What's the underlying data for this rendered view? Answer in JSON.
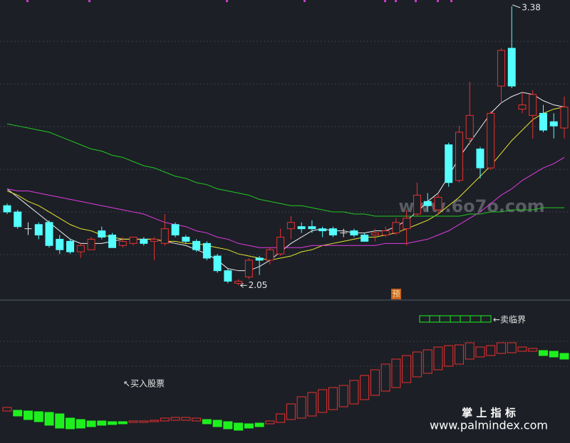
{
  "chart_data": {
    "type": "candlestick",
    "ylim": [
      1.98,
      3.41
    ],
    "up_color": "#e8312f",
    "down_color": "#54ffff",
    "flat_color": "#e6e6e6",
    "open": [
      2.43,
      2.4,
      2.32,
      2.34,
      2.35,
      2.27,
      2.26,
      2.21,
      2.22,
      2.31,
      2.29,
      2.24,
      2.25,
      2.27,
      2.26,
      2.25,
      2.34,
      2.28,
      2.26,
      2.25,
      2.19,
      2.12,
      2.06,
      2.09,
      2.18,
      2.17,
      2.2,
      2.32,
      2.33,
      2.33,
      2.32,
      2.32,
      2.3,
      2.31,
      2.29,
      2.29,
      2.29,
      2.3,
      2.32,
      2.39,
      2.45,
      2.41,
      2.72,
      2.55,
      2.75,
      2.7,
      2.61,
      3.0,
      3.18,
      2.89,
      2.86,
      2.87,
      2.83,
      2.8
    ],
    "high": [
      2.44,
      2.41,
      2.35,
      2.35,
      2.36,
      2.29,
      2.27,
      2.25,
      2.28,
      2.33,
      2.3,
      2.28,
      2.28,
      2.28,
      2.28,
      2.39,
      2.35,
      2.29,
      2.27,
      2.26,
      2.2,
      2.13,
      2.08,
      2.18,
      2.19,
      2.23,
      2.32,
      2.38,
      2.35,
      2.36,
      2.33,
      2.33,
      2.32,
      2.32,
      2.3,
      2.32,
      2.33,
      2.37,
      2.41,
      2.54,
      2.49,
      2.49,
      2.73,
      2.81,
      3.02,
      2.71,
      2.88,
      3.18,
      3.38,
      2.97,
      2.98,
      2.91,
      2.87,
      2.95
    ],
    "low": [
      2.39,
      2.32,
      2.29,
      2.27,
      2.23,
      2.2,
      2.2,
      2.18,
      2.22,
      2.27,
      2.23,
      2.23,
      2.24,
      2.24,
      2.17,
      2.24,
      2.28,
      2.25,
      2.21,
      2.17,
      2.11,
      2.06,
      2.05,
      2.08,
      2.1,
      2.15,
      2.19,
      2.27,
      2.3,
      2.3,
      2.28,
      2.28,
      2.28,
      2.28,
      2.26,
      2.26,
      2.28,
      2.29,
      2.24,
      2.38,
      2.4,
      2.39,
      2.52,
      2.54,
      2.72,
      2.56,
      2.6,
      2.92,
      2.99,
      2.87,
      2.75,
      2.78,
      2.75,
      2.75
    ],
    "close": [
      2.4,
      2.33,
      2.32,
      2.29,
      2.24,
      2.22,
      2.21,
      2.24,
      2.27,
      2.28,
      2.23,
      2.26,
      2.28,
      2.25,
      2.27,
      2.32,
      2.29,
      2.26,
      2.22,
      2.18,
      2.12,
      2.07,
      2.07,
      2.17,
      2.17,
      2.22,
      2.28,
      2.35,
      2.32,
      2.32,
      2.31,
      2.29,
      2.3,
      2.29,
      2.26,
      2.3,
      2.31,
      2.35,
      2.37,
      2.48,
      2.43,
      2.47,
      2.54,
      2.78,
      2.86,
      2.61,
      2.87,
      3.17,
      3.0,
      2.91,
      2.96,
      2.79,
      2.81,
      2.9
    ],
    "moving_averages": [
      {
        "color": "#f0f0f0",
        "values": [
          2.51,
          2.47,
          2.43,
          2.39,
          2.35,
          2.31,
          2.27,
          2.25,
          2.25,
          2.25,
          2.26,
          2.27,
          2.27,
          2.27,
          2.27,
          2.26,
          2.25,
          2.24,
          2.22,
          2.2,
          2.17,
          2.13,
          2.12,
          2.12,
          2.14,
          2.17,
          2.21,
          2.25,
          2.28,
          2.31,
          2.32,
          2.31,
          2.31,
          2.3,
          2.3,
          2.31,
          2.31,
          2.33,
          2.36,
          2.4,
          2.45,
          2.49,
          2.57,
          2.66,
          2.73,
          2.8,
          2.87,
          2.92,
          2.95,
          2.97,
          2.96,
          2.93,
          2.91,
          2.9
        ]
      },
      {
        "color": "#e6e62e",
        "values": [
          2.5,
          2.48,
          2.45,
          2.43,
          2.4,
          2.37,
          2.34,
          2.32,
          2.31,
          2.29,
          2.28,
          2.27,
          2.27,
          2.27,
          2.27,
          2.26,
          2.26,
          2.25,
          2.25,
          2.24,
          2.23,
          2.22,
          2.2,
          2.19,
          2.18,
          2.17,
          2.18,
          2.19,
          2.21,
          2.22,
          2.24,
          2.25,
          2.26,
          2.27,
          2.28,
          2.28,
          2.29,
          2.3,
          2.32,
          2.34,
          2.36,
          2.39,
          2.43,
          2.47,
          2.52,
          2.57,
          2.62,
          2.68,
          2.74,
          2.79,
          2.84,
          2.87,
          2.89,
          2.9
        ]
      },
      {
        "color": "#e23be2",
        "values": [
          2.51,
          2.5,
          2.5,
          2.49,
          2.48,
          2.47,
          2.46,
          2.45,
          2.44,
          2.43,
          2.42,
          2.41,
          2.4,
          2.39,
          2.37,
          2.35,
          2.34,
          2.33,
          2.31,
          2.3,
          2.28,
          2.27,
          2.25,
          2.24,
          2.23,
          2.23,
          2.23,
          2.23,
          2.23,
          2.24,
          2.24,
          2.24,
          2.24,
          2.24,
          2.24,
          2.24,
          2.25,
          2.25,
          2.25,
          2.26,
          2.27,
          2.29,
          2.31,
          2.34,
          2.37,
          2.4,
          2.44,
          2.48,
          2.51,
          2.55,
          2.58,
          2.61,
          2.63,
          2.66
        ]
      },
      {
        "color": "#22c922",
        "values": [
          2.82,
          2.81,
          2.8,
          2.79,
          2.78,
          2.76,
          2.74,
          2.72,
          2.7,
          2.69,
          2.67,
          2.66,
          2.64,
          2.62,
          2.61,
          2.59,
          2.57,
          2.56,
          2.54,
          2.53,
          2.51,
          2.5,
          2.49,
          2.48,
          2.46,
          2.45,
          2.44,
          2.43,
          2.43,
          2.42,
          2.41,
          2.4,
          2.4,
          2.39,
          2.39,
          2.38,
          2.38,
          2.38,
          2.38,
          2.38,
          2.38,
          2.38,
          2.38,
          2.38,
          2.39,
          2.39,
          2.4,
          2.4,
          2.41,
          2.41,
          2.41,
          2.42,
          2.42,
          2.42
        ]
      }
    ],
    "predict_badge": "预",
    "indicator": {
      "ylim": [
        0,
        100
      ],
      "tops": [
        25,
        23,
        22.5,
        22,
        21.5,
        20.5,
        17.5,
        16.5,
        15.5,
        15.5,
        15,
        15,
        15.5,
        15.5,
        16,
        17.5,
        18,
        18,
        17.5,
        16.5,
        16,
        15,
        14,
        13.5,
        14,
        15.5,
        20.5,
        27.5,
        32.5,
        35.5,
        37.5,
        39,
        40.5,
        44,
        47.5,
        51.5,
        55.5,
        59,
        61.5,
        64,
        65.5,
        67.5,
        68.5,
        69,
        70.5,
        67.5,
        68.5,
        70.5,
        70.5,
        67.5,
        66.5,
        65,
        64.5,
        63
      ],
      "bottoms": [
        22.5,
        19,
        16.5,
        15,
        12.5,
        10.5,
        10,
        10.5,
        11.5,
        12.5,
        13,
        13.5,
        14.5,
        14.5,
        15,
        15.5,
        16,
        16,
        15.5,
        13.5,
        11.5,
        10,
        9,
        10.5,
        11.5,
        13.5,
        14.5,
        16.5,
        17.5,
        19,
        21.5,
        23.5,
        25.5,
        27.5,
        30.5,
        33.5,
        36.5,
        39,
        42.5,
        46.5,
        49,
        51.5,
        54,
        55.5,
        59,
        60.5,
        61.5,
        63,
        63.5,
        64.5,
        64.5,
        61.5,
        60.5,
        59
      ],
      "colors": [
        "#e8312f",
        "#1ef01e",
        "#1ef01e",
        "#1ef01e",
        "#1ef01e",
        "#1ef01e",
        "#1ef01e",
        "#1ef01e",
        "#1ef01e",
        "#1ef01e",
        "#1ef01e",
        "#1ef01e",
        "#e8312f",
        "#e8312f",
        "#e8312f",
        "#e8312f",
        "#e8312f",
        "#e8312f",
        "#e8312f",
        "#1ef01e",
        "#1ef01e",
        "#1ef01e",
        "#1ef01e",
        "#1ef01e",
        "#1ef01e",
        "#e8312f",
        "#e8312f",
        "#e8312f",
        "#e8312f",
        "#e8312f",
        "#e8312f",
        "#e8312f",
        "#e8312f",
        "#e8312f",
        "#e8312f",
        "#e8312f",
        "#e8312f",
        "#e8312f",
        "#e8312f",
        "#e8312f",
        "#e8312f",
        "#e8312f",
        "#e8312f",
        "#e8312f",
        "#e8312f",
        "#e8312f",
        "#e8312f",
        "#e8312f",
        "#e8312f",
        "#e8312f",
        "#e8312f",
        "#1ef01e",
        "#1ef01e",
        "#1ef01e"
      ],
      "sell_label": "←卖临界",
      "buy_label": "↖买入股票"
    },
    "watermark": "www.6o7o.com",
    "brand": "掌 上 指 标",
    "brand_url": "www.palmindex.com"
  }
}
